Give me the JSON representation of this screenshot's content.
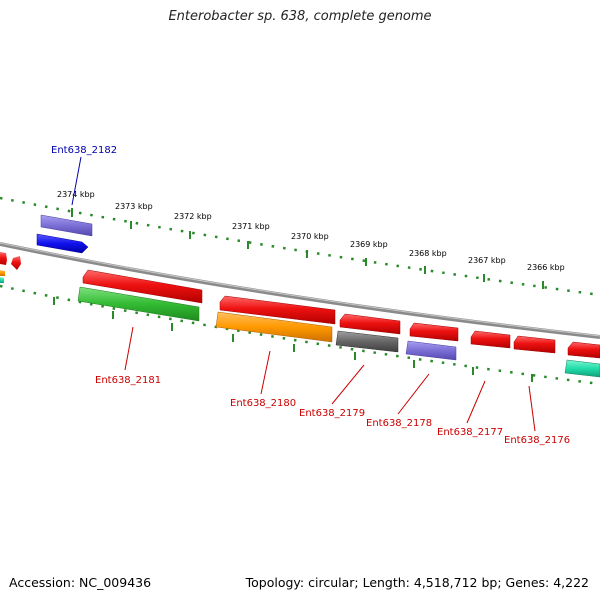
{
  "title": "Enterobacter sp. 638, complete genome",
  "footer": {
    "accession": "Accession: NC_009436",
    "summary": "Topology: circular; Length: 4,518,712 bp; Genes: 4,222"
  },
  "scale_labels": [
    "2374 kbp",
    "2373 kbp",
    "2372 kbp",
    "2371 kbp",
    "2370 kbp",
    "2369 kbp",
    "2368 kbp",
    "2367 kbp",
    "2366 kbp"
  ],
  "gene_labels": [
    {
      "text": "Ent638_2182",
      "color": "#0000aa"
    },
    {
      "text": "Ent638_2181",
      "color": "#cc0000"
    },
    {
      "text": "Ent638_2180",
      "color": "#cc0000"
    },
    {
      "text": "Ent638_2179",
      "color": "#cc0000"
    },
    {
      "text": "Ent638_2178",
      "color": "#cc0000"
    },
    {
      "text": "Ent638_2177",
      "color": "#cc0000"
    },
    {
      "text": "Ent638_2176",
      "color": "#cc0000"
    }
  ],
  "colors": {
    "red": "#ee1111",
    "blue": "#1111ee",
    "lavender": "#7b6fd6",
    "green": "#33bb33",
    "orange": "#ff9900",
    "gray": "#666666",
    "teal": "#22ddaa",
    "tick": "#2a8a2a",
    "backbone": "#8a8a8a"
  }
}
